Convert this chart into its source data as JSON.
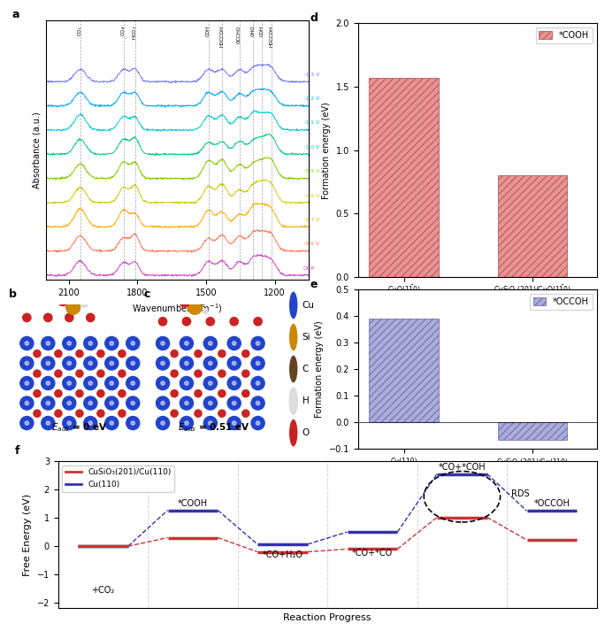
{
  "panel_d": {
    "categories": [
      "CuO(1$\\bar{1}$0)",
      "CuSiO$_3$(201)/CuO(1$\\bar{1}$0)"
    ],
    "values": [
      1.57,
      0.8
    ],
    "ylabel": "Formation energy (eV)",
    "ylim": [
      0.0,
      2.0
    ],
    "yticks": [
      0.0,
      0.5,
      1.0,
      1.5,
      2.0
    ],
    "legend_label": "*COOH",
    "bar_color": "#e07070",
    "hatch": "////",
    "title": "d"
  },
  "panel_e": {
    "categories": [
      "Cu(110)",
      "CuSiO$_3$(201)/Cu(110)"
    ],
    "values": [
      0.39,
      -0.065
    ],
    "ylabel": "Formation energy (eV)",
    "ylim": [
      -0.1,
      0.5
    ],
    "yticks": [
      -0.1,
      0.0,
      0.1,
      0.2,
      0.3,
      0.4,
      0.5
    ],
    "legend_label": "*OCCOH",
    "bar_color": "#8080c8",
    "hatch": "////",
    "title": "e"
  },
  "panel_f": {
    "title": "f",
    "ylabel": "Free Energy (eV)",
    "xlabel": "Reaction Progress",
    "ylim": [
      -2.2,
      3.0
    ],
    "yticks": [
      -2,
      -1,
      0,
      1,
      2,
      3
    ],
    "red_label": "CuSiO₃(201)/Cu(110)",
    "blue_label": "Cu(110)",
    "red_color": "#cc3333",
    "blue_color": "#3333aa",
    "red_energies": [
      0.0,
      0.3,
      -0.2,
      -0.1,
      1.02,
      0.22
    ],
    "blue_energies": [
      0.0,
      1.27,
      0.07,
      0.5,
      2.55,
      1.25
    ],
    "x_positions": [
      0,
      1,
      2,
      3,
      4,
      5
    ],
    "stage_labels": [
      "+CO₂",
      "*COOH",
      "*CO+H₂O",
      "*CO+*CO",
      "*CO+*COH",
      "*OCCOH"
    ],
    "vline_positions": [
      0.5,
      1.5,
      2.5,
      3.5,
      4.5
    ]
  },
  "panel_a": {
    "title": "a",
    "xlabel": "Wavenumber (cm$^{-1}$)",
    "ylabel": "Absorbance (a.u.)",
    "xlim": [
      2200,
      1050
    ],
    "dashed_positions": [
      2050,
      1860,
      1810,
      1490,
      1430,
      1355,
      1295,
      1255,
      1215
    ],
    "top_labels": [
      "CO$_L$",
      "CO$_B$",
      "HCO$_3$",
      "COH",
      "HOCCOH",
      "OCCHO",
      "OHO",
      "COH",
      "HOCCOH"
    ],
    "voltage_labels": [
      "-1.3 V",
      "-1.2 V",
      "-1.1 V",
      "-1.0 V",
      "-0.9 V",
      "-0.8 V",
      "-0.7 V",
      "-0.6 V",
      "OCP"
    ],
    "voltage_colors": [
      "#7777ff",
      "#00aaff",
      "#00cccc",
      "#00cc88",
      "#88cc00",
      "#cccc00",
      "#ffaa00",
      "#ff7755",
      "#cc44cc"
    ],
    "spectra_colors": [
      "#7777ff",
      "#00aaff",
      "#00cccc",
      "#00cc88",
      "#88cc00",
      "#cccc00",
      "#ffaa00",
      "#ff7755",
      "#cc44cc"
    ]
  },
  "panel_b_label": "$E_{ads}$ = 0 eV",
  "panel_c_label": "$E_{ads}$ = 0.51 eV",
  "legend_items": [
    {
      "label": "Cu",
      "color": "#2244cc"
    },
    {
      "label": "Si",
      "color": "#cc8800"
    },
    {
      "label": "C",
      "color": "#664422"
    },
    {
      "label": "H",
      "color": "#dddddd"
    },
    {
      "label": "O",
      "color": "#cc2222"
    }
  ]
}
